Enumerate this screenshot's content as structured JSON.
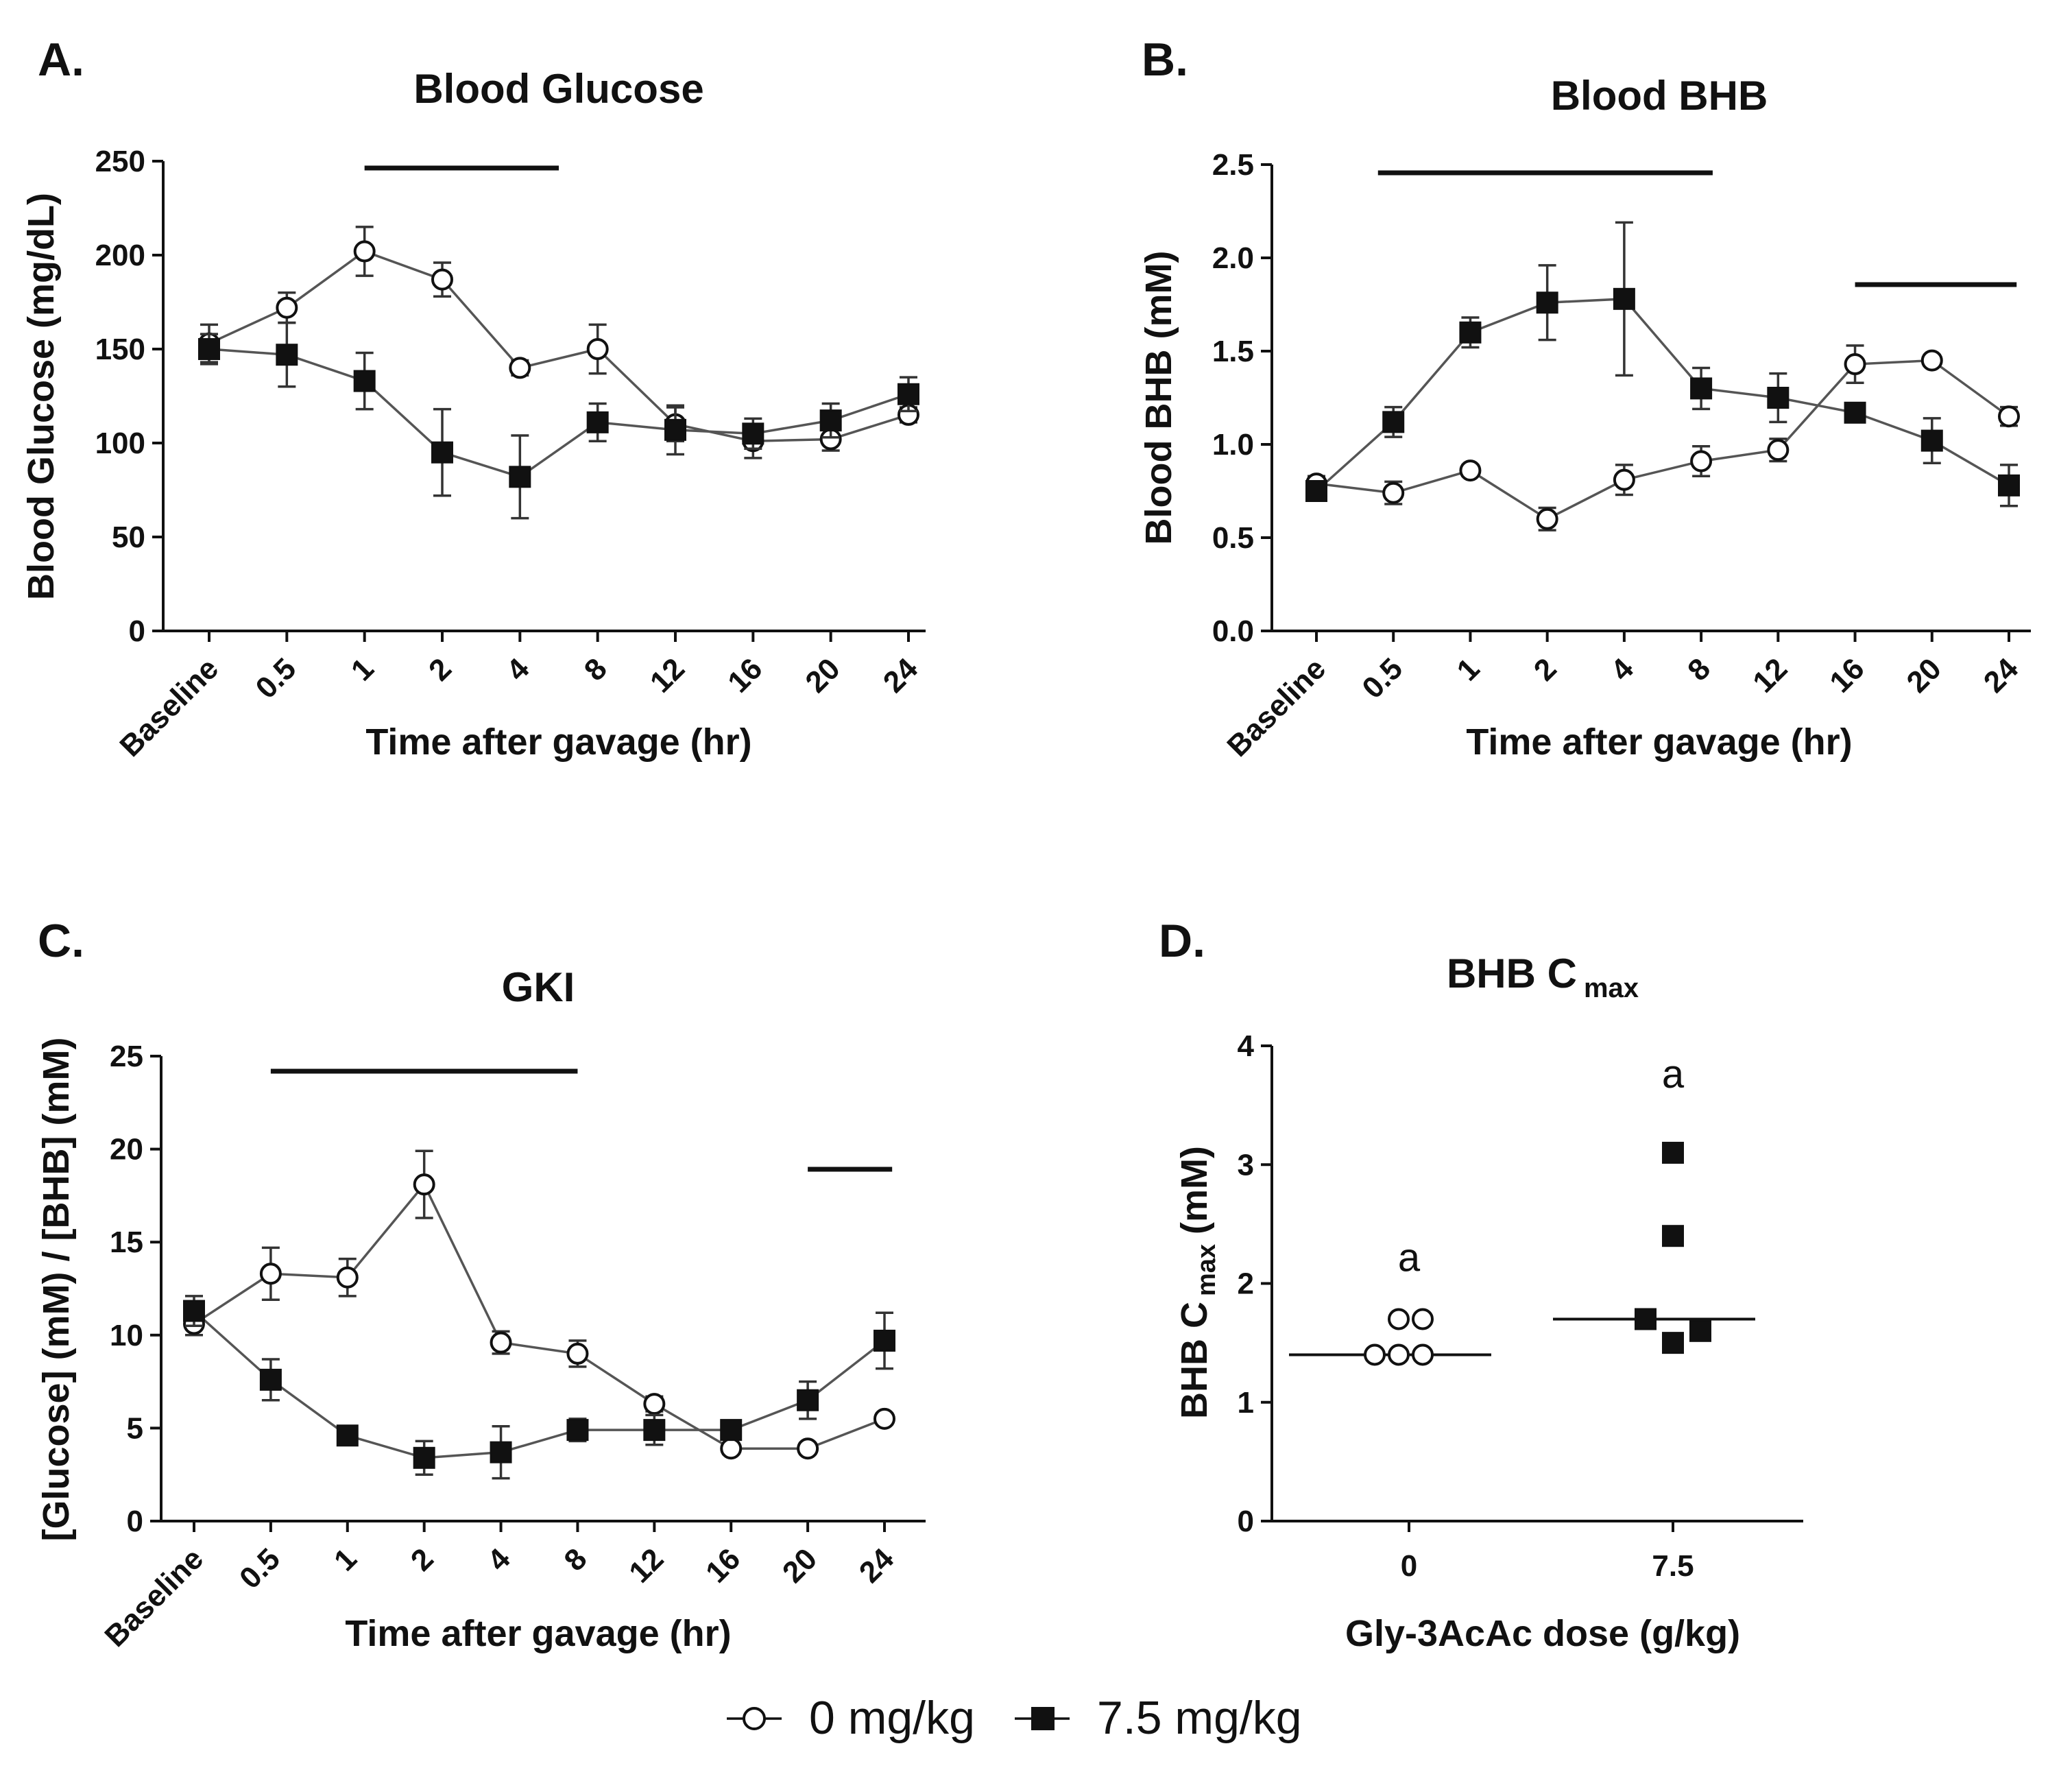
{
  "legend": {
    "items": [
      {
        "label": "0 mg/kg",
        "marker": "open-circle"
      },
      {
        "label": "7.5 mg/kg",
        "marker": "filled-square"
      }
    ]
  },
  "chart_data": [
    {
      "panel": "A.",
      "type": "line",
      "title": "Blood Glucose",
      "xlabel": "Time after gavage (hr)",
      "ylabel": "Blood Glucose (mg/dL)",
      "categories": [
        "Baseline",
        "0.5",
        "1",
        "2",
        "4",
        "8",
        "12",
        "16",
        "20",
        "24"
      ],
      "ylim": [
        0,
        250
      ],
      "yticks": [
        0,
        50,
        100,
        150,
        200,
        250
      ],
      "series": [
        {
          "name": "0 mg/kg",
          "marker": "open-circle",
          "values": [
            153,
            172,
            202,
            187,
            140,
            150,
            110,
            101,
            102,
            115
          ],
          "errors": [
            10,
            8,
            13,
            9,
            4,
            13,
            9,
            9,
            6,
            4
          ]
        },
        {
          "name": "7.5 mg/kg",
          "marker": "filled-square",
          "values": [
            150,
            147,
            133,
            95,
            82,
            111,
            107,
            105,
            112,
            126
          ],
          "errors": [
            8,
            17,
            15,
            23,
            22,
            10,
            13,
            8,
            9,
            9
          ]
        }
      ],
      "significance_bars": [
        {
          "from": 2,
          "to": 4.5
        }
      ]
    },
    {
      "panel": "B.",
      "type": "line",
      "title": "Blood BHB",
      "xlabel": "Time after gavage (hr)",
      "ylabel": "Blood BHB  (mM)",
      "categories": [
        "Baseline",
        "0.5",
        "1",
        "2",
        "4",
        "8",
        "12",
        "16",
        "20",
        "24"
      ],
      "ylim": [
        0,
        2.5
      ],
      "yticks": [
        "0.0",
        "0.5",
        "1.0",
        "1.5",
        "2.0",
        "2.5"
      ],
      "series": [
        {
          "name": "0 mg/kg",
          "marker": "open-circle",
          "values": [
            0.79,
            0.74,
            0.86,
            0.6,
            0.81,
            0.91,
            0.97,
            1.43,
            1.45,
            1.15
          ],
          "errors": [
            0.04,
            0.06,
            0.03,
            0.06,
            0.08,
            0.08,
            0.06,
            0.1,
            0.03,
            0.05
          ]
        },
        {
          "name": "7.5 mg/kg",
          "marker": "filled-square",
          "values": [
            0.75,
            1.12,
            1.6,
            1.76,
            1.78,
            1.3,
            1.25,
            1.17,
            1.02,
            0.78
          ],
          "errors": [
            0.04,
            0.08,
            0.08,
            0.2,
            0.41,
            0.11,
            0.13,
            0.03,
            0.12,
            0.11
          ]
        }
      ],
      "significance_bars": [
        {
          "from": 0.8,
          "to": 5.15
        },
        {
          "from": 7,
          "to": 9.1
        }
      ]
    },
    {
      "panel": "C.",
      "type": "line",
      "title": "GKI",
      "xlabel": "Time after gavage (hr)",
      "ylabel": "[Glucose] (mM) / [BHB] (mM)",
      "categories": [
        "Baseline",
        "0.5",
        "1",
        "2",
        "4",
        "8",
        "12",
        "16",
        "20",
        "24"
      ],
      "ylim": [
        0,
        25
      ],
      "yticks": [
        0,
        5,
        10,
        15,
        20,
        25
      ],
      "series": [
        {
          "name": "0 mg/kg",
          "marker": "open-circle",
          "values": [
            10.6,
            13.3,
            13.1,
            18.1,
            9.6,
            9.0,
            6.3,
            3.9,
            3.9,
            5.5
          ],
          "errors": [
            0.6,
            1.4,
            1.0,
            1.8,
            0.6,
            0.7,
            0.4,
            0.3,
            0.3,
            0.3
          ]
        },
        {
          "name": "7.5 mg/kg",
          "marker": "filled-square",
          "values": [
            11.3,
            7.6,
            4.6,
            3.4,
            3.7,
            4.9,
            4.9,
            4.9,
            6.5,
            9.7
          ],
          "errors": [
            0.8,
            1.1,
            0.4,
            0.9,
            1.4,
            0.6,
            0.8,
            0.4,
            1.0,
            1.5
          ]
        }
      ],
      "significance_bars": [
        {
          "from": 1,
          "to": 5
        },
        {
          "from": 8,
          "to": 9.1
        }
      ]
    },
    {
      "panel": "D.",
      "type": "scatter",
      "title_main": "BHB C",
      "title_sub": "max",
      "xlabel": "Gly-3AcAc dose (g/kg)",
      "ylabel_main": "BHB C",
      "ylabel_sub": "max",
      "ylabel_unit": "(mM)",
      "categories": [
        "0",
        "7.5"
      ],
      "ylim": [
        0,
        4
      ],
      "yticks": [
        0,
        1,
        2,
        3,
        4
      ],
      "groups": [
        {
          "name": "0 mg/kg",
          "marker": "open-circle",
          "points": [
            1.4,
            1.4,
            1.4,
            1.7,
            1.7
          ],
          "median": 1.4,
          "annotation": "a"
        },
        {
          "name": "7.5 mg/kg",
          "marker": "filled-square",
          "points": [
            1.7,
            1.5,
            1.6,
            2.4,
            3.1
          ],
          "median": 1.7,
          "annotation": "a"
        }
      ]
    }
  ]
}
